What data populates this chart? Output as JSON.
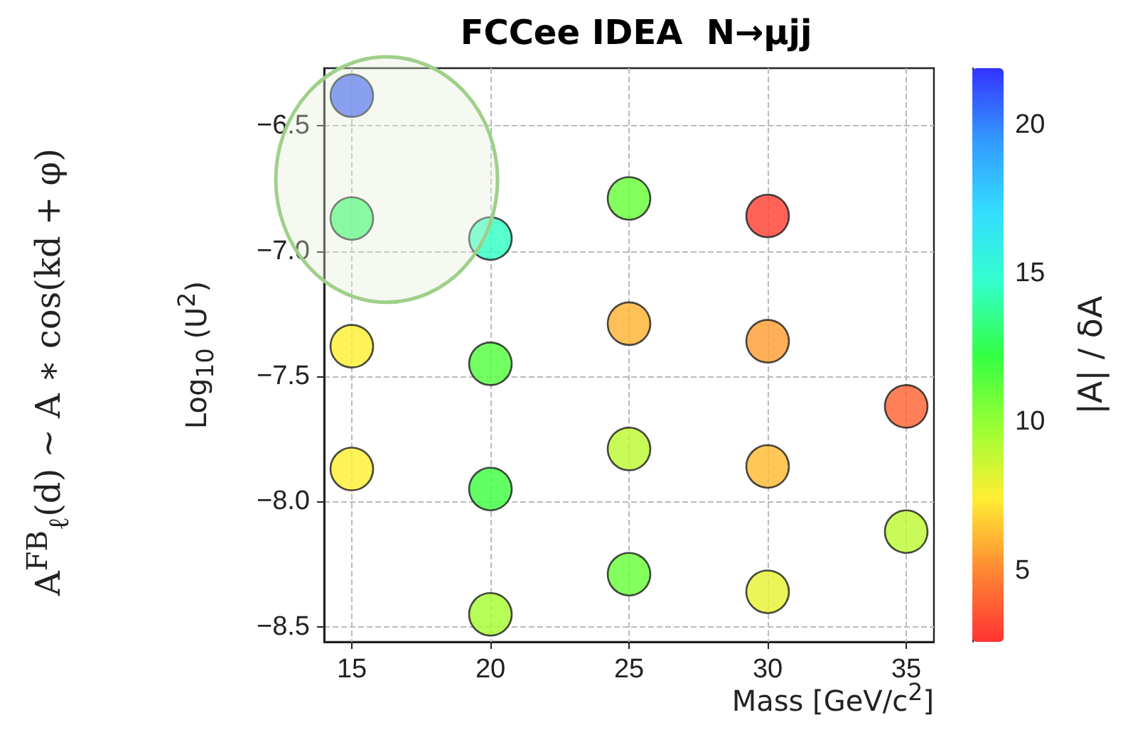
{
  "chart_data": {
    "type": "scatter",
    "title": "FCCee IDEA  N→μjj",
    "xlabel": "Mass [GeV/c$^{2}$]",
    "ylabel": "Log$_{10}$ (U$^{2}$)",
    "clabel": "|A| / δA",
    "annotations": [
      "A$^{FB}$$_{ℓ}$(d) ~ A ∗ cos(kd + φ)"
    ],
    "x": [
      15,
      15,
      15,
      15,
      20,
      20,
      20,
      20,
      25,
      25,
      25,
      25,
      30,
      30,
      30,
      30,
      35,
      35
    ],
    "values": [
      -6.38,
      -6.87,
      -7.38,
      -7.87,
      -6.95,
      -7.45,
      -7.95,
      -8.45,
      -6.79,
      -7.29,
      -7.79,
      -8.29,
      -6.86,
      -7.36,
      -7.86,
      -8.36,
      -7.62,
      -8.12
    ],
    "cvalues": [
      21,
      13,
      7.5,
      7.5,
      14.5,
      11.5,
      12,
      9.5,
      11,
      6,
      9,
      11,
      3,
      5.5,
      6.2,
      8,
      4,
      9
    ],
    "xlim": [
      14,
      36
    ],
    "xticks": [
      15,
      20,
      25,
      30,
      35
    ],
    "ylim": [
      -8.56,
      -6.27
    ],
    "yticks": [
      -6.5,
      {
        "value": -7,
        "label": "−7.0"
      },
      -7.5,
      {
        "value": -8,
        "label": "−8.0"
      },
      -8.5
    ],
    "clim": [
      2.6,
      21.9
    ],
    "cticks": [
      5,
      10,
      15,
      20
    ],
    "grid": true,
    "marker": "circle"
  }
}
